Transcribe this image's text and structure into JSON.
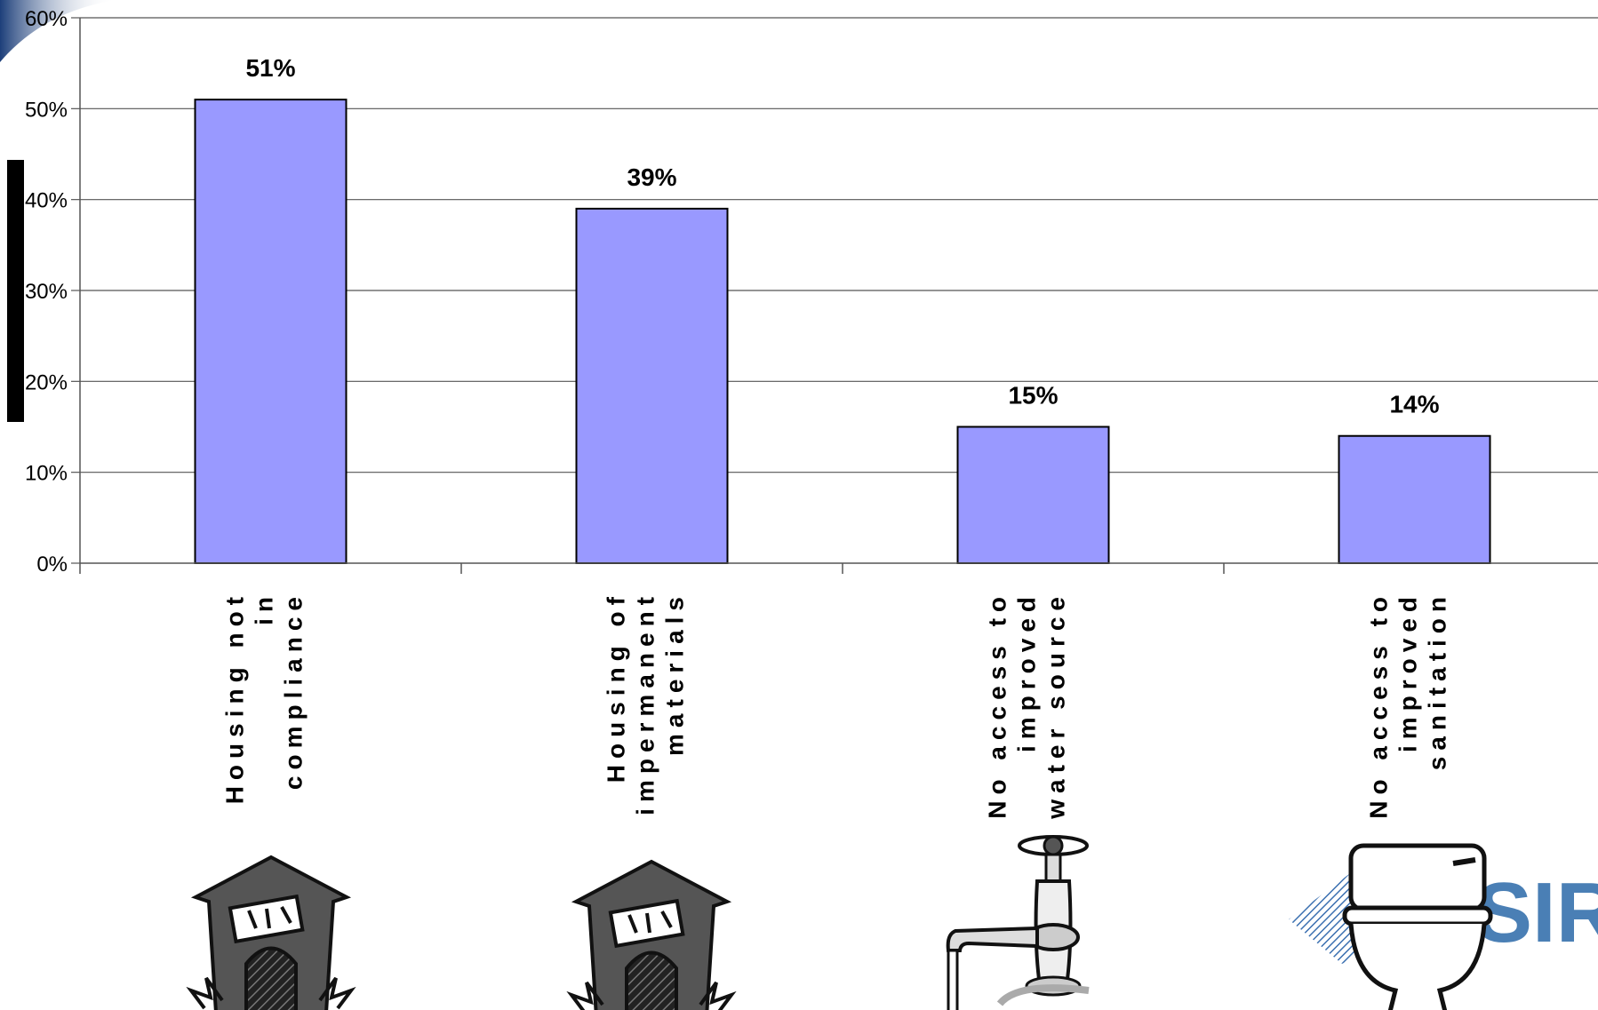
{
  "chart_data": {
    "type": "bar",
    "categories": [
      "Housing not in compliance",
      "Housing of impermanent materials",
      "No access to improved water source",
      "No access to improved sanitation"
    ],
    "category_label_lines": [
      [
        "Housing not",
        "in",
        "compliance"
      ],
      [
        "Housing of",
        "impermanent",
        "materials"
      ],
      [
        "No access to",
        "improved",
        "water source"
      ],
      [
        "No access to",
        "improved",
        "sanitation"
      ]
    ],
    "values": [
      51,
      39,
      15,
      14
    ],
    "data_labels": [
      "51%",
      "39%",
      "15%",
      "14%"
    ],
    "y_ticks": [
      "0%",
      "10%",
      "20%",
      "30%",
      "40%",
      "50%",
      "60%"
    ],
    "ylim": [
      0,
      60
    ],
    "grid": true,
    "bar_color": "#9999ff",
    "title": "",
    "xlabel": "",
    "ylabel": ""
  },
  "icons": [
    "house-icon",
    "house-icon",
    "faucet-icon",
    "toilet-icon"
  ],
  "logo": {
    "text": "SIR",
    "color": "#4a7fb5"
  }
}
